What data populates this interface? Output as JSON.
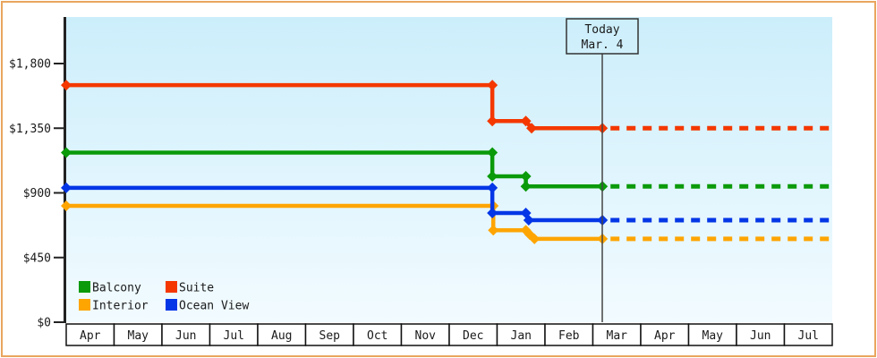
{
  "page": {
    "background": "#ffffff",
    "frame_border_color": "#e9a55e"
  },
  "today_marker": {
    "line1": "Today",
    "line2": "Mar. 4"
  },
  "legend": {
    "items": [
      {
        "label": "Balcony",
        "color": "#0a9a0a"
      },
      {
        "label": "Suite",
        "color": "#f43800"
      },
      {
        "label": "Interior",
        "color": "#fea502"
      },
      {
        "label": "Ocean View",
        "color": "#0336e6"
      }
    ]
  },
  "colors": {
    "plot_bg_top": "#cceefb",
    "plot_bg_bottom": "#f2fbff",
    "axis": "#222222",
    "today_line": "#444444",
    "today_box_border": "#333333",
    "month_cell_bg": "#ffffff",
    "month_cell_border": "#111111"
  },
  "chart_data": {
    "type": "line",
    "title": "",
    "subtitle": "",
    "legend_position": "bottom-left-inside",
    "grid": false,
    "y_axis": {
      "range": [
        0,
        1800
      ],
      "ticks": [
        {
          "label": "$1,800",
          "value": 1800
        },
        {
          "label": "$1,350",
          "value": 1350
        },
        {
          "label": "$900",
          "value": 900
        },
        {
          "label": "$450",
          "value": 450
        },
        {
          "label": "$0",
          "value": 0
        }
      ]
    },
    "x_axis": {
      "unit": "month",
      "month_cells": [
        "Apr",
        "May",
        "Jun",
        "Jul",
        "Aug",
        "Sep",
        "Oct",
        "Nov",
        "Dec",
        "Jan",
        "Feb",
        "Mar",
        "Apr",
        "May",
        "Jun",
        "Jul"
      ]
    },
    "today": {
      "label": "Today",
      "date": "Mar. 4",
      "x_month": 11.2
    },
    "projection": {
      "style": "dashed",
      "to_month": 16
    },
    "series": [
      {
        "name": "Suite",
        "color": "#f43800",
        "points_month_price": [
          [
            0,
            1650
          ],
          [
            8.9,
            1650
          ],
          [
            8.9,
            1400
          ],
          [
            9.6,
            1400
          ],
          [
            9.72,
            1350
          ],
          [
            11.2,
            1350
          ]
        ],
        "projected_price": 1350
      },
      {
        "name": "Balcony",
        "color": "#0a9a0a",
        "points_month_price": [
          [
            0,
            1180
          ],
          [
            8.9,
            1180
          ],
          [
            8.9,
            1015
          ],
          [
            9.6,
            1015
          ],
          [
            9.6,
            945
          ],
          [
            11.2,
            945
          ]
        ],
        "projected_price": 945
      },
      {
        "name": "Ocean View",
        "color": "#0336e6",
        "points_month_price": [
          [
            0,
            935
          ],
          [
            8.9,
            935
          ],
          [
            8.9,
            760
          ],
          [
            9.6,
            760
          ],
          [
            9.66,
            710
          ],
          [
            11.2,
            710
          ]
        ],
        "projected_price": 710
      },
      {
        "name": "Interior",
        "color": "#fea502",
        "points_month_price": [
          [
            0,
            810
          ],
          [
            8.92,
            810
          ],
          [
            8.92,
            640
          ],
          [
            9.6,
            640
          ],
          [
            9.68,
            610
          ],
          [
            9.78,
            580
          ],
          [
            11.2,
            580
          ]
        ],
        "projected_price": 580
      }
    ]
  }
}
